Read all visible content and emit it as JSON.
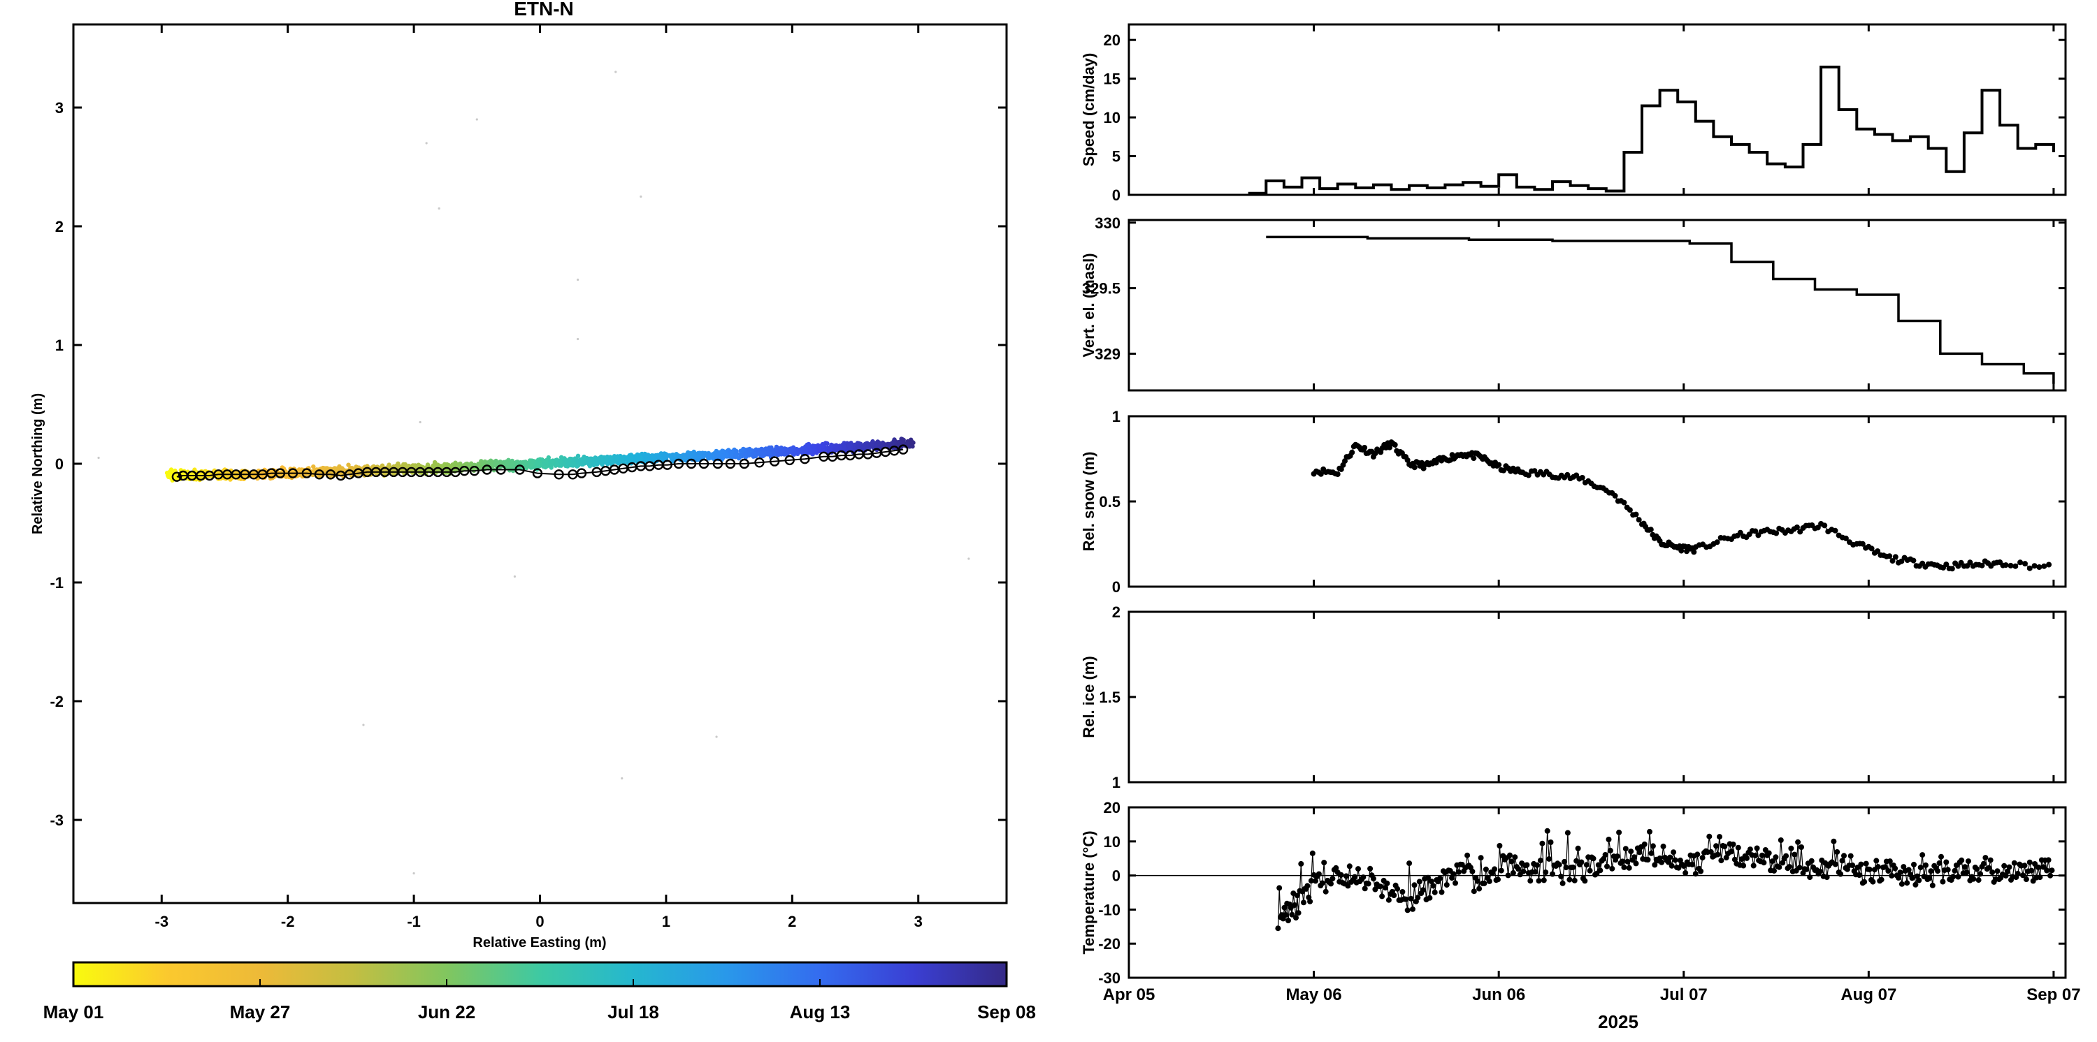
{
  "colors": {
    "axis": "#000000",
    "background": "#ffffff",
    "colormap": [
      "#352a87",
      "#3b44e6",
      "#2f86f5",
      "#1fb2da",
      "#3ec9a3",
      "#92c54e",
      "#e3b93a",
      "#fcbc36",
      "#f9fb0e"
    ]
  },
  "chart_data": [
    {
      "id": "track",
      "type": "scatter",
      "title": "ETN-N",
      "xlabel": "Relative Easting (m)",
      "ylabel": "Relative Northing (m)",
      "xlim": [
        -3.7,
        3.7
      ],
      "ylim": [
        -3.7,
        3.7
      ],
      "xticks": [
        -3,
        -2,
        -1,
        0,
        1,
        2,
        3
      ],
      "yticks": [
        -3,
        -2,
        -1,
        0,
        1,
        2,
        3
      ],
      "grid": false,
      "series": [
        {
          "kind": "daily-position",
          "marker": "open-circle",
          "x": [
            -2.88,
            -2.83,
            -2.76,
            -2.69,
            -2.62,
            -2.55,
            -2.48,
            -2.41,
            -2.34,
            -2.27,
            -2.2,
            -2.13,
            -2.06,
            -1.96,
            -1.85,
            -1.75,
            -1.66,
            -1.58,
            -1.51,
            -1.44,
            -1.37,
            -1.3,
            -1.23,
            -1.16,
            -1.09,
            -1.02,
            -0.95,
            -0.88,
            -0.81,
            -0.74,
            -0.67,
            -0.6,
            -0.52,
            -0.42,
            -0.31,
            -0.16,
            -0.02,
            0.15,
            0.26,
            0.33,
            0.45,
            0.52,
            0.59,
            0.66,
            0.73,
            0.8,
            0.87,
            0.94,
            1.01,
            1.1,
            1.2,
            1.3,
            1.41,
            1.51,
            1.62,
            1.74,
            1.86,
            1.98,
            2.1,
            2.25,
            2.32,
            2.39,
            2.46,
            2.53,
            2.6,
            2.67,
            2.74,
            2.81,
            2.88
          ],
          "y": [
            -0.11,
            -0.1,
            -0.1,
            -0.1,
            -0.1,
            -0.09,
            -0.09,
            -0.09,
            -0.09,
            -0.09,
            -0.09,
            -0.08,
            -0.08,
            -0.08,
            -0.08,
            -0.09,
            -0.09,
            -0.1,
            -0.09,
            -0.08,
            -0.07,
            -0.07,
            -0.07,
            -0.07,
            -0.07,
            -0.07,
            -0.07,
            -0.07,
            -0.07,
            -0.07,
            -0.07,
            -0.06,
            -0.06,
            -0.05,
            -0.05,
            -0.05,
            -0.08,
            -0.09,
            -0.09,
            -0.08,
            -0.07,
            -0.06,
            -0.05,
            -0.04,
            -0.03,
            -0.02,
            -0.02,
            -0.01,
            -0.01,
            0.0,
            0.0,
            0.0,
            0.0,
            0.0,
            0.0,
            0.01,
            0.02,
            0.03,
            0.04,
            0.06,
            0.06,
            0.07,
            0.07,
            0.08,
            0.08,
            0.09,
            0.1,
            0.11,
            0.12
          ]
        },
        {
          "kind": "gps-scatter",
          "x_range": [
            -2.95,
            2.95
          ],
          "y_trend": [
            -0.1,
            0.17
          ],
          "spread": 0.06
        }
      ],
      "colorbar": {
        "labels": [
          "May 01",
          "May 27",
          "Jun 22",
          "Jul 18",
          "Aug 13",
          "Sep 08"
        ],
        "orientation": "horizontal",
        "colormap": "parula-reversed"
      }
    },
    {
      "id": "speed",
      "type": "line",
      "step": true,
      "ylabel": "Speed (cm/day)",
      "ylim": [
        0,
        22
      ],
      "yticks": [
        0,
        5,
        10,
        15,
        20
      ],
      "x_dates": [
        "Apr 05",
        "May 06",
        "Jun 06",
        "Jul 07",
        "Aug 07",
        "Sep 07"
      ],
      "x": [
        "2025-04-25",
        "2025-04-28",
        "2025-05-01",
        "2025-05-04",
        "2025-05-07",
        "2025-05-10",
        "2025-05-13",
        "2025-05-16",
        "2025-05-19",
        "2025-05-22",
        "2025-05-25",
        "2025-05-28",
        "2025-05-31",
        "2025-06-03",
        "2025-06-06",
        "2025-06-09",
        "2025-06-12",
        "2025-06-15",
        "2025-06-18",
        "2025-06-21",
        "2025-06-24",
        "2025-06-27",
        "2025-06-30",
        "2025-07-03",
        "2025-07-06",
        "2025-07-09",
        "2025-07-12",
        "2025-07-15",
        "2025-07-18",
        "2025-07-21",
        "2025-07-24",
        "2025-07-27",
        "2025-07-30",
        "2025-08-02",
        "2025-08-05",
        "2025-08-08",
        "2025-08-11",
        "2025-08-14",
        "2025-08-17",
        "2025-08-20",
        "2025-08-23",
        "2025-08-26",
        "2025-08-29",
        "2025-09-01",
        "2025-09-04",
        "2025-09-07"
      ],
      "y": [
        0.2,
        1.8,
        1.0,
        2.2,
        0.8,
        1.4,
        0.9,
        1.3,
        0.7,
        1.2,
        0.9,
        1.3,
        1.6,
        1.1,
        2.6,
        1.0,
        0.7,
        1.7,
        1.2,
        0.8,
        0.5,
        5.5,
        11.5,
        13.5,
        12.0,
        9.5,
        7.5,
        6.5,
        5.5,
        4.0,
        3.6,
        6.5,
        16.5,
        11.0,
        8.5,
        7.8,
        7.0,
        7.5,
        6.0,
        3.0,
        8.0,
        13.5,
        9.0,
        6.0,
        6.5,
        5.5
      ]
    },
    {
      "id": "elevation",
      "type": "line",
      "step": true,
      "ylabel": "Vert. el. (masl)",
      "ylim": [
        328.72,
        330.02
      ],
      "yticks": [
        329,
        329.5,
        330
      ],
      "ytick_labels": [
        "329",
        "329.5",
        "330"
      ],
      "x_dates": [
        "Apr 05",
        "May 06",
        "Jun 06",
        "Jul 07",
        "Aug 07",
        "Sep 07"
      ],
      "x": [
        "2025-04-28",
        "2025-05-15",
        "2025-06-01",
        "2025-06-15",
        "2025-07-01",
        "2025-07-08",
        "2025-07-15",
        "2025-07-22",
        "2025-07-29",
        "2025-08-05",
        "2025-08-12",
        "2025-08-19",
        "2025-08-26",
        "2025-09-02",
        "2025-09-07"
      ],
      "y": [
        329.89,
        329.88,
        329.87,
        329.86,
        329.86,
        329.84,
        329.7,
        329.57,
        329.49,
        329.45,
        329.25,
        329.0,
        328.92,
        328.85,
        328.77
      ]
    },
    {
      "id": "snow",
      "type": "scatter",
      "marker": "dot-line",
      "ylabel": "Rel. snow (m)",
      "ylim": [
        0,
        1
      ],
      "yticks": [
        0,
        0.5,
        1
      ],
      "ytick_labels": [
        "0",
        "0.5",
        "1"
      ],
      "x_dates": [
        "Apr 05",
        "May 06",
        "Jun 06",
        "Jul 07",
        "Aug 07",
        "Sep 07"
      ],
      "x": [
        "2025-05-06",
        "2025-05-10",
        "2025-05-13",
        "2025-05-16",
        "2025-05-19",
        "2025-05-22",
        "2025-05-25",
        "2025-05-28",
        "2025-05-31",
        "2025-06-03",
        "2025-06-06",
        "2025-06-10",
        "2025-06-15",
        "2025-06-20",
        "2025-06-25",
        "2025-06-30",
        "2025-07-03",
        "2025-07-06",
        "2025-07-09",
        "2025-07-15",
        "2025-07-20",
        "2025-07-25",
        "2025-07-30",
        "2025-08-05",
        "2025-08-10",
        "2025-08-15",
        "2025-08-20",
        "2025-08-25",
        "2025-08-30",
        "2025-09-07"
      ],
      "y": [
        0.68,
        0.67,
        0.83,
        0.78,
        0.84,
        0.72,
        0.71,
        0.75,
        0.78,
        0.76,
        0.7,
        0.67,
        0.66,
        0.63,
        0.55,
        0.38,
        0.26,
        0.23,
        0.22,
        0.29,
        0.32,
        0.33,
        0.36,
        0.25,
        0.17,
        0.14,
        0.12,
        0.13,
        0.14,
        0.11
      ]
    },
    {
      "id": "ice",
      "type": "line",
      "ylabel": "Rel. ice  (m)",
      "ylim": [
        1,
        2
      ],
      "yticks": [
        1,
        1.5,
        2
      ],
      "ytick_labels": [
        "1",
        "1.5",
        "2"
      ],
      "x_dates": [
        "Apr 05",
        "May 06",
        "Jun 06",
        "Jul 07",
        "Aug 07",
        "Sep 07"
      ],
      "x": [],
      "y": []
    },
    {
      "id": "temperature",
      "type": "scatter",
      "marker": "dot-line",
      "ylabel": "Temperature (°C)",
      "ylim": [
        -30,
        20
      ],
      "yticks": [
        -30,
        -20,
        -10,
        0,
        10,
        20
      ],
      "reference_line": 0,
      "x_dates": [
        "Apr 05",
        "May 06",
        "Jun 06",
        "Jul 07",
        "Aug 07",
        "Sep 07"
      ],
      "xlabel": "2025",
      "x": [
        "2025-04-30",
        "2025-05-03",
        "2025-05-06",
        "2025-05-10",
        "2025-05-14",
        "2025-05-18",
        "2025-05-22",
        "2025-05-26",
        "2025-05-30",
        "2025-06-03",
        "2025-06-07",
        "2025-06-11",
        "2025-06-15",
        "2025-06-19",
        "2025-06-23",
        "2025-06-27",
        "2025-07-01",
        "2025-07-05",
        "2025-07-09",
        "2025-07-13",
        "2025-07-17",
        "2025-07-21",
        "2025-07-25",
        "2025-07-29",
        "2025-08-02",
        "2025-08-06",
        "2025-08-10",
        "2025-08-14",
        "2025-08-18",
        "2025-08-22",
        "2025-08-26",
        "2025-08-30",
        "2025-09-03",
        "2025-09-07"
      ],
      "y": [
        -12,
        -9,
        -3,
        -1,
        0,
        -4,
        -7,
        -3,
        1,
        -2,
        3,
        1,
        2,
        0,
        4,
        5,
        6,
        5,
        3,
        8,
        6,
        4,
        3,
        2,
        2,
        1,
        2,
        0,
        0,
        1,
        1,
        2,
        1,
        2
      ]
    }
  ]
}
